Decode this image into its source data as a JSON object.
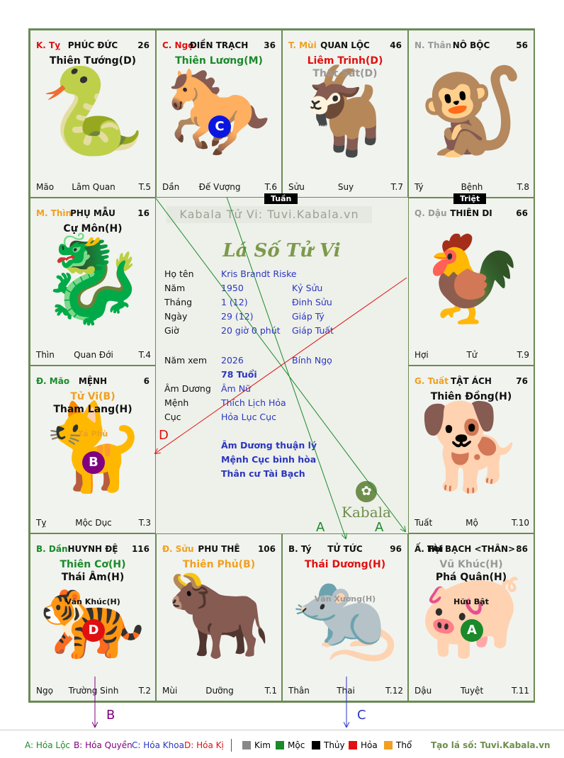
{
  "colors": {
    "kim": "#888888",
    "moc": "#1a8a2a",
    "thuy": "#000000",
    "hoa": "#e01010",
    "tho": "#f0a020",
    "faded": "#999999",
    "cantho": "#f0a020",
    "blue": "#2a36c0",
    "green": "#1a8a2a",
    "red": "#e01010",
    "purple": "#800080"
  },
  "cells": [
    {
      "id": "ty-snake",
      "can": "K. Tỵ",
      "can_color": "#e01010",
      "palace": "PHÚC ĐỨC",
      "age": "26",
      "stars": [
        {
          "name": "Thiên Tướng(D)",
          "color": "#111111"
        }
      ],
      "minors": [],
      "badge": null,
      "branch": "Mão",
      "stage": "Lâm Quan",
      "limit": "T.5",
      "icon": "snake-icon",
      "glyph": "🐍"
    },
    {
      "id": "ngo-horse",
      "can": "C. Ngọ",
      "can_color": "#e01010",
      "palace": "ĐIỀN TRẠCH",
      "age": "36",
      "stars": [
        {
          "name": "Thiên Lương(M)",
          "color": "#1a8a2a"
        }
      ],
      "minors": [],
      "badge": {
        "letter": "C",
        "color": "#0a16e0"
      },
      "branch": "Dần",
      "stage": "Đế Vượng",
      "limit": "T.6",
      "icon": "horse-icon",
      "glyph": "🐎"
    },
    {
      "id": "mui-goat",
      "can": "T. Mùi",
      "can_color": "#f0a020",
      "palace": "QUAN LỘC",
      "age": "46",
      "stars": [
        {
          "name": "Liêm Trinh(D)",
          "color": "#e01010"
        },
        {
          "name": "Thất Sát(D)",
          "color": "#999999"
        }
      ],
      "minors": [],
      "badge": null,
      "branch": "Sửu",
      "stage": "Suy",
      "limit": "T.7",
      "icon": "goat-icon",
      "glyph": "🐐"
    },
    {
      "id": "than-monkey",
      "can": "N. Thân",
      "can_color": "#999999",
      "palace": "NÔ BỘC",
      "age": "56",
      "stars": [],
      "minors": [],
      "badge": null,
      "branch": "Tý",
      "stage": "Bệnh",
      "limit": "T.8",
      "icon": "monkey-icon",
      "glyph": "🐒"
    },
    {
      "id": "thin-dragon",
      "can": "M. Thìn",
      "can_color": "#f0a020",
      "palace": "PHỤ MẪU",
      "age": "16",
      "stars": [
        {
          "name": "Cự Môn(H)",
          "color": "#111111"
        }
      ],
      "minors": [],
      "badge": null,
      "branch": "Thìn",
      "stage": "Quan Đới",
      "limit": "T.4",
      "icon": "dragon-icon",
      "glyph": "🐉"
    },
    {
      "id": "dau-rooster",
      "can": "Q. Dậu",
      "can_color": "#999999",
      "palace": "THIÊN DI",
      "age": "66",
      "stars": [],
      "minors": [],
      "badge": null,
      "branch": "Hợi",
      "stage": "Tử",
      "limit": "T.9",
      "icon": "rooster-icon",
      "glyph": "🐓"
    },
    {
      "id": "mao-cat",
      "can": "Đ. Mão",
      "can_color": "#1a8a2a",
      "palace": "MỆNH",
      "age": "6",
      "stars": [
        {
          "name": "Tử Vi(B)",
          "color": "#f0a020"
        },
        {
          "name": "Tham Lang(H)",
          "color": "#111111"
        }
      ],
      "minors": [
        {
          "name": "Tả Phù",
          "color": "#f0a020"
        }
      ],
      "badge": {
        "letter": "B",
        "color": "#800080"
      },
      "branch": "Tỵ",
      "stage": "Mộc Dục",
      "limit": "T.3",
      "icon": "cat-icon",
      "glyph": "🐈"
    },
    {
      "id": "tuat-dog",
      "can": "G. Tuất",
      "can_color": "#f0a020",
      "palace": "TẬT ÁCH",
      "age": "76",
      "stars": [
        {
          "name": "Thiên Đồng(H)",
          "color": "#111111"
        }
      ],
      "minors": [],
      "badge": null,
      "branch": "Tuất",
      "stage": "Mộ",
      "limit": "T.10",
      "icon": "dog-icon",
      "glyph": "🐕"
    },
    {
      "id": "dan-tiger",
      "can": "B. Dần",
      "can_color": "#1a8a2a",
      "palace": "HUYNH ĐỆ",
      "age": "116",
      "stars": [
        {
          "name": "Thiên Cơ(H)",
          "color": "#1a8a2a"
        },
        {
          "name": "Thái Âm(H)",
          "color": "#111111"
        }
      ],
      "minors": [
        {
          "name": "Văn Khúc(H)",
          "color": "#111111"
        }
      ],
      "badge": {
        "letter": "D",
        "color": "#e01010"
      },
      "branch": "Ngọ",
      "stage": "Trường Sinh",
      "limit": "T.2",
      "icon": "tiger-icon",
      "glyph": "🐅"
    },
    {
      "id": "suu-ox",
      "can": "Đ. Sửu",
      "can_color": "#f0a020",
      "palace": "PHU THÊ",
      "age": "106",
      "stars": [
        {
          "name": "Thiên Phủ(B)",
          "color": "#f0a020"
        }
      ],
      "minors": [],
      "badge": null,
      "branch": "Mùi",
      "stage": "Dưỡng",
      "limit": "T.1",
      "icon": "ox-icon",
      "glyph": "🐂"
    },
    {
      "id": "ty-rat",
      "can": "B. Tý",
      "can_color": "#111111",
      "palace": "TỬ TỨC",
      "age": "96",
      "stars": [
        {
          "name": "Thái Dương(H)",
          "color": "#e01010"
        }
      ],
      "minors": [
        {
          "name": "Văn Xương(H)",
          "color": "#999999"
        }
      ],
      "badge": null,
      "branch": "Thân",
      "stage": "Thai",
      "limit": "T.12",
      "icon": "rat-icon",
      "glyph": "🐀"
    },
    {
      "id": "hoi-pig",
      "can": "Ấ. Hợi",
      "can_color": "#111111",
      "palace": "TÀI BẠCH <THÂN>",
      "age": "86",
      "stars": [
        {
          "name": "Vũ Khúc(H)",
          "color": "#999999"
        },
        {
          "name": "Phá Quân(H)",
          "color": "#111111"
        }
      ],
      "minors": [
        {
          "name": "Hữu Bật",
          "color": "#111111"
        }
      ],
      "badge": {
        "letter": "A",
        "color": "#1a8a2a"
      },
      "branch": "Dậu",
      "stage": "Tuyệt",
      "limit": "T.11",
      "icon": "pig-icon",
      "glyph": "🐖"
    }
  ],
  "tags": {
    "tuan": "Tuần",
    "triet": "Triệt"
  },
  "center": {
    "watermark": "Kabala Tử Vi: Tuvi.Kabala.vn",
    "title": "Lá Số Tử Vi",
    "rows": [
      {
        "label": "Họ tên",
        "v1": "Kris Brandt Riske",
        "v2": ""
      },
      {
        "label": "Năm",
        "v1": "1950",
        "v2": "Kỷ Sửu"
      },
      {
        "label": "Tháng",
        "v1": "1  (12)",
        "v2": "Đinh Sửu"
      },
      {
        "label": "Ngày",
        "v1": "29  (12)",
        "v2": "Giáp Tý"
      },
      {
        "label": "Giờ",
        "v1": "20 giờ 0 phút",
        "v2": "Giáp Tuất"
      },
      {
        "label": "Năm xem",
        "v1": "2026",
        "v2": "Bính Ngọ"
      }
    ],
    "age_now": "78 Tuổi",
    "rows2": [
      {
        "label": "Âm Dương",
        "v1": "Âm Nữ"
      },
      {
        "label": "Mệnh",
        "v1": "Thích Lịch Hỏa"
      },
      {
        "label": "Cục",
        "v1": "Hỏa Lục Cục"
      }
    ],
    "notes": [
      "Âm Dương thuận lý",
      "Mệnh Cục bình hòa",
      "Thân cư Tài Bạch"
    ],
    "logo_text": "Kabala"
  },
  "arrow_labels": {
    "a1": "A",
    "a2": "A",
    "b": "B",
    "c": "C",
    "d": "D"
  },
  "legend": {
    "a": "A: Hóa Lộc",
    "b": "B: Hóa Quyền",
    "c": "C: Hóa Khoa",
    "d": "D: Hóa Kị",
    "kim": "Kim",
    "moc": "Mộc",
    "thuy": "Thủy",
    "hoa": "Hỏa",
    "tho": "Thổ",
    "site": "Tạo lá số: Tuvi.Kabala.vn"
  }
}
